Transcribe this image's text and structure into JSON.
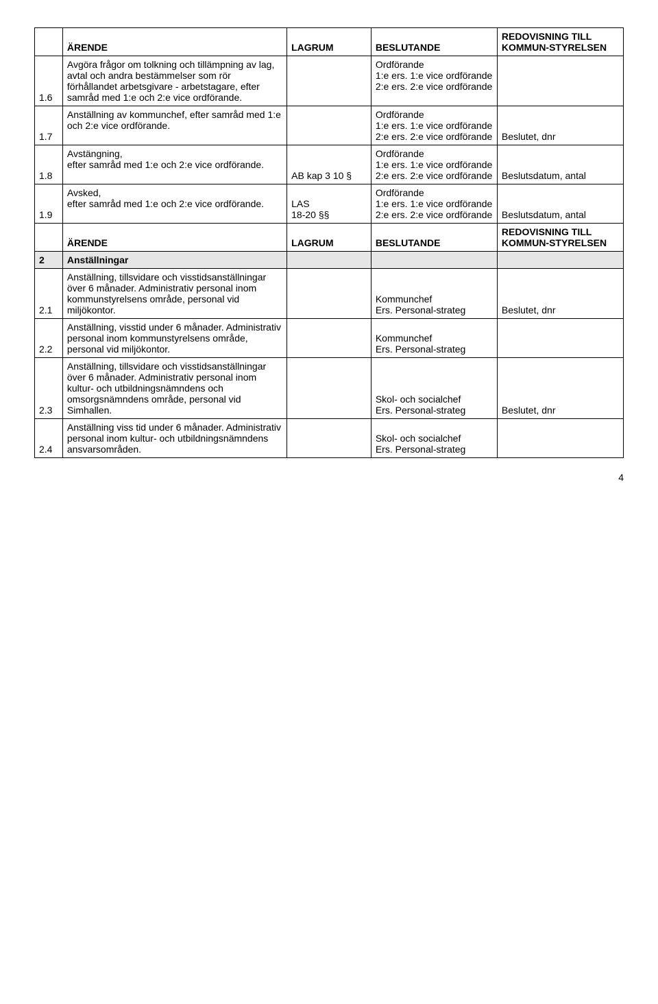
{
  "header": {
    "arende": "ÄRENDE",
    "lagrum": "LAGRUM",
    "beslutande": "BESLUTANDE",
    "redovisning": "REDOVISNING TILL KOMMUN-STYRELSEN"
  },
  "rows": [
    {
      "num": "1.6",
      "arende": "Avgöra frågor om tolkning och tillämpning av lag, avtal och andra bestämmelser som rör förhållandet arbetsgivare - arbetstagare, efter samråd med 1:e och 2:e vice ordförande.",
      "lagrum": "",
      "beslutande": "Ordförande\n1:e ers. 1:e vice ordförande\n2:e ers. 2:e vice ordförande",
      "redovisning": ""
    },
    {
      "num": "1.7",
      "arende": "Anställning av kommunchef, efter samråd med 1:e och 2:e vice ordförande.",
      "lagrum": "",
      "beslutande": "Ordförande\n1:e ers. 1:e vice ordförande\n2:e ers. 2:e vice ordförande",
      "redovisning": "Beslutet, dnr"
    },
    {
      "num": "1.8",
      "arende": "Avstängning,\nefter samråd med 1:e och 2:e vice ordförande.",
      "lagrum": "AB kap 3 10 §",
      "beslutande": "Ordförande\n1:e ers. 1:e vice ordförande\n2:e ers. 2:e vice ordförande",
      "redovisning": "Beslutsdatum, antal"
    },
    {
      "num": "1.9",
      "arende": "Avsked,\nefter samråd med 1:e och 2:e vice ordförande.",
      "lagrum": "LAS\n18-20 §§",
      "beslutande": "Ordförande\n1:e ers. 1:e vice ordförande\n2:e ers. 2:e vice ordförande",
      "redovisning": "Beslutsdatum, antal"
    }
  ],
  "section2": {
    "num": "2",
    "title": "Anställningar"
  },
  "rows2": [
    {
      "num": "2.1",
      "arende": "Anställning, tillsvidare och visstidsanställningar över 6 månader. Administrativ personal inom kommunstyrelsens område, personal vid miljökontor.",
      "lagrum": "",
      "beslutande": "Kommunchef\nErs. Personal-strateg",
      "redovisning": "Beslutet, dnr"
    },
    {
      "num": "2.2",
      "arende": "Anställning, visstid under 6 månader. Administrativ personal inom kommunstyrelsens område, personal vid miljökontor.",
      "lagrum": "",
      "beslutande": "Kommunchef\nErs. Personal-strateg",
      "redovisning": ""
    },
    {
      "num": "2.3",
      "arende": "Anställning, tillsvidare och visstidsanställningar över 6 månader. Administrativ personal inom kultur- och utbildningsnämndens och omsorgsnämndens område, personal vid Simhallen.",
      "lagrum": "",
      "beslutande": "Skol- och socialchef\nErs. Personal-strateg",
      "redovisning": "Beslutet, dnr"
    },
    {
      "num": "2.4",
      "arende": "Anställning viss tid under 6 månader. Administrativ personal inom kultur- och utbildningsnämndens ansvarsområden.",
      "lagrum": "",
      "beslutande": "Skol- och socialchef\nErs. Personal-strateg",
      "redovisning": ""
    }
  ],
  "pageNumber": "4"
}
